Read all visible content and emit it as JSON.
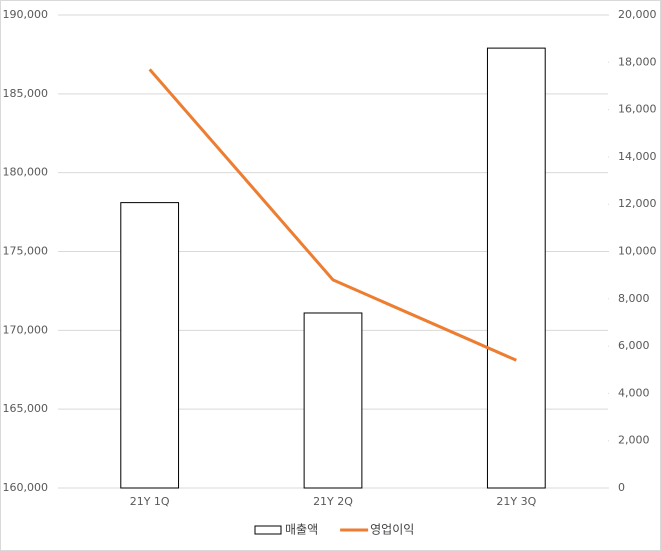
{
  "chart_data": {
    "type": "bar",
    "categories": [
      "21Y 1Q",
      "21Y 2Q",
      "21Y 3Q"
    ],
    "series": [
      {
        "name": "매출액",
        "type": "bar",
        "color": "#ffffff",
        "values": [
          178100,
          171100,
          187900
        ]
      },
      {
        "name": "영업이익",
        "type": "line",
        "axis": "y2",
        "color": "#ed7d31",
        "values": [
          17700,
          8800,
          5400
        ]
      }
    ],
    "ylim": [
      160000,
      190000
    ],
    "yticks": [
      {
        "value": 160000,
        "label": "160,000"
      },
      {
        "value": 165000,
        "label": "165,000"
      },
      {
        "value": 170000,
        "label": "170,000"
      },
      {
        "value": 175000,
        "label": "175,000"
      },
      {
        "value": 180000,
        "label": "180,000"
      },
      {
        "value": 185000,
        "label": "185,000"
      },
      {
        "value": 190000,
        "label": "190,000"
      }
    ],
    "y2lim": [
      0,
      20000
    ],
    "y2ticks": [
      0,
      {
        "value": 2000,
        "label": "2,000"
      },
      {
        "value": 4000,
        "label": "4,000"
      },
      {
        "value": 6000,
        "label": "6,000"
      },
      {
        "value": 8000,
        "label": "8,000"
      },
      {
        "value": 10000,
        "label": "10,000"
      },
      {
        "value": 12000,
        "label": "12,000"
      },
      {
        "value": 14000,
        "label": "14,000"
      },
      {
        "value": 16000,
        "label": "16,000"
      },
      {
        "value": 18000,
        "label": "18,000"
      },
      {
        "value": 20000,
        "label": "20,000"
      }
    ],
    "grid": true,
    "legend": "bottom"
  }
}
